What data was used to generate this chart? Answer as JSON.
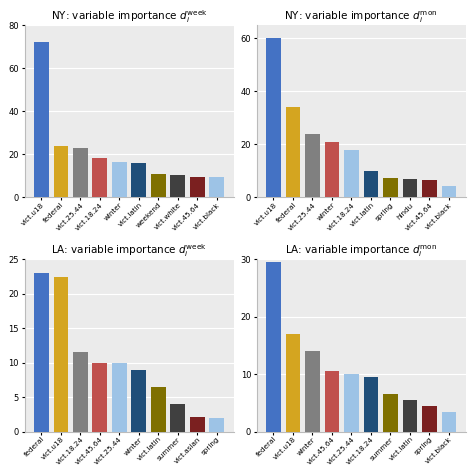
{
  "plots": [
    {
      "title": "NY: variable importance $d_i^{\\mathrm{week}}$",
      "categories": [
        "vict.u18",
        "federal",
        "vict.25.44",
        "vict.18.24",
        "winter",
        "vict.latin",
        "weekend",
        "vict.white",
        "vict.45.64",
        "vict.black"
      ],
      "values": [
        72,
        24,
        23,
        18.5,
        16.5,
        16,
        11,
        10.5,
        9.5,
        9.5
      ],
      "colors": [
        "#4472C4",
        "#D4A520",
        "#808080",
        "#C0504D",
        "#9DC3E6",
        "#1F4E79",
        "#7F7000",
        "#404040",
        "#7B2020",
        "#9DC3E6"
      ],
      "ylim": [
        0,
        80
      ],
      "yticks": [
        0,
        20,
        40,
        60,
        80
      ]
    },
    {
      "title": "NY: variable importance $d_i^{\\mathrm{mon}}$",
      "categories": [
        "vict.u18",
        "federal",
        "vict.25.44",
        "winter",
        "vict.18.24",
        "vict.latin",
        "spring",
        "hindu",
        "vict.45.64",
        "vict.black"
      ],
      "values": [
        60,
        34,
        24,
        21,
        18,
        10,
        7.5,
        7,
        6.5,
        4.5
      ],
      "colors": [
        "#4472C4",
        "#D4A520",
        "#808080",
        "#C0504D",
        "#9DC3E6",
        "#1F4E79",
        "#7F7000",
        "#404040",
        "#7B2020",
        "#9DC3E6"
      ],
      "ylim": [
        0,
        65
      ],
      "yticks": [
        0,
        20,
        40,
        60
      ]
    },
    {
      "title": "LA: variable importance $d_i^{\\mathrm{week}}$",
      "categories": [
        "federal",
        "vict.u18",
        "vict.18.24",
        "vict.45.64",
        "vict.25.44",
        "winter",
        "vict.latin",
        "summer",
        "vict.asian",
        "spring"
      ],
      "values": [
        23,
        22.5,
        11.5,
        10,
        10,
        9,
        6.5,
        4,
        2.2,
        2
      ],
      "colors": [
        "#4472C4",
        "#D4A520",
        "#808080",
        "#C0504D",
        "#9DC3E6",
        "#1F4E79",
        "#7F7000",
        "#404040",
        "#7B2020",
        "#9DC3E6"
      ],
      "ylim": [
        0,
        25
      ],
      "yticks": [
        0,
        5,
        10,
        15,
        20,
        25
      ]
    },
    {
      "title": "LA: variable importance $d_i^{\\mathrm{mon}}$",
      "categories": [
        "federal",
        "vict.u18",
        "winter",
        "vict.45.64",
        "vict.25.44",
        "vict.18.24",
        "summer",
        "vict.latin",
        "spring",
        "vict.black"
      ],
      "values": [
        29.5,
        17,
        14,
        10.5,
        10,
        9.5,
        6.5,
        5.5,
        4.5,
        3.5
      ],
      "colors": [
        "#4472C4",
        "#D4A520",
        "#808080",
        "#C0504D",
        "#9DC3E6",
        "#1F4E79",
        "#7F7000",
        "#404040",
        "#7B2020",
        "#9DC3E6"
      ],
      "ylim": [
        0,
        30
      ],
      "yticks": [
        0,
        10,
        20,
        30
      ]
    }
  ],
  "fig_bg": "#FFFFFF",
  "ax_bg": "#EBEBEB",
  "grid_color": "#FFFFFF",
  "spine_color": "#BBBBBB"
}
